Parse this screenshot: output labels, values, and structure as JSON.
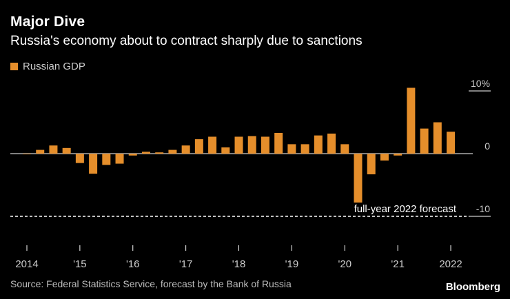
{
  "header": {
    "title": "Major Dive",
    "subtitle": "Russia's economy about to contract sharply due to sanctions"
  },
  "footer": {
    "source": "Source: Federal Statistics Service, forecast by the Bank of Russia",
    "brand": "Bloomberg"
  },
  "colors": {
    "bar": "#e58e2b",
    "background": "#000000",
    "axis": "#ffffff",
    "label": "#cccccc"
  },
  "chart_data": {
    "type": "bar",
    "legend": [
      "Russian GDP"
    ],
    "legend_position": "top-left",
    "x_tick_labels": [
      "2014",
      "'15",
      "'16",
      "'17",
      "'18",
      "'19",
      "'20",
      "'21",
      "2022"
    ],
    "y_tick_labels": [
      "10%",
      "0",
      "-10"
    ],
    "y_ticks": [
      10,
      0,
      -10
    ],
    "ylim": [
      -14,
      12
    ],
    "grid": false,
    "series": [
      {
        "values": [
          -0.1,
          0.6,
          1.3,
          0.9,
          -1.5,
          -3.2,
          -1.8,
          -1.6,
          -0.3,
          0.3,
          0.2,
          0.6,
          1.3,
          2.3,
          2.7,
          1.0,
          2.7,
          2.8,
          2.7,
          3.3,
          1.5,
          1.5,
          2.9,
          3.2,
          1.5,
          -7.8,
          -3.3,
          -1.1,
          -0.3,
          10.5,
          4.0,
          5.0,
          3.5
        ]
      }
    ],
    "annotations": [
      {
        "text": "full-year 2022 forecast",
        "y": -10,
        "style": "dashed-line"
      }
    ]
  }
}
